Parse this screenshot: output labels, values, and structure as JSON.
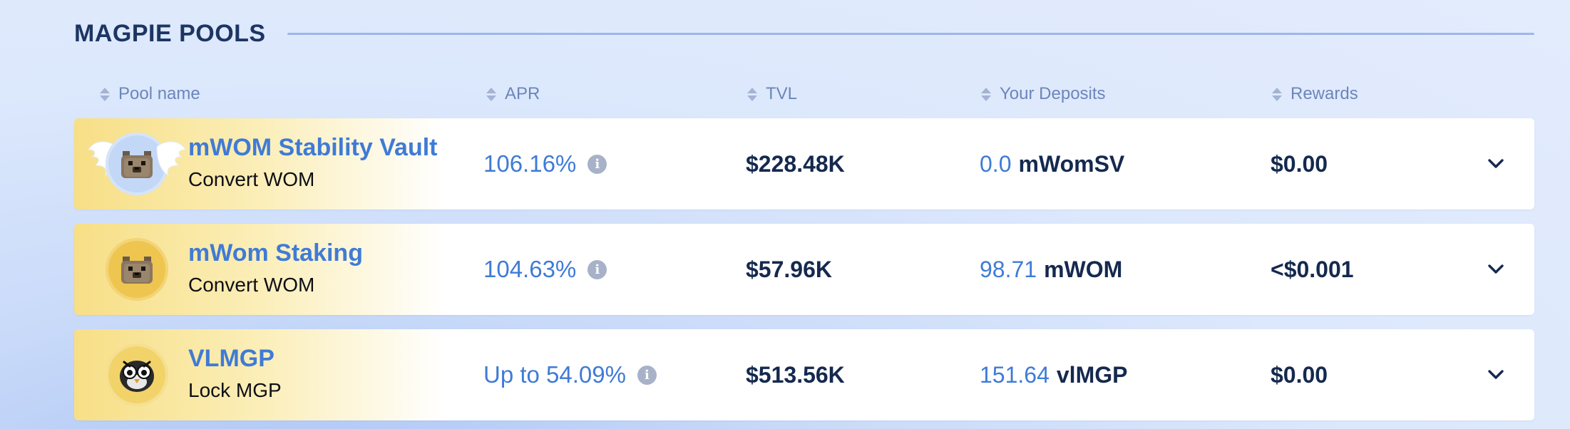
{
  "section": {
    "title": "MAGPIE POOLS"
  },
  "columns": {
    "pool_name": "Pool name",
    "apr": "APR",
    "tvl": "TVL",
    "deposits": "Your Deposits",
    "rewards": "Rewards"
  },
  "pools": [
    {
      "name": "mWOM Stability Vault",
      "subtitle": "Convert WOM",
      "icon": "winged-wombat-icon",
      "apr": "106.16%",
      "tvl": "$228.48K",
      "deposit_amount": "0.0",
      "deposit_token": "mWomSV",
      "rewards": "$0.00"
    },
    {
      "name": "mWom Staking",
      "subtitle": "Convert WOM",
      "icon": "wombat-icon",
      "apr": "104.63%",
      "tvl": "$57.96K",
      "deposit_amount": "98.71",
      "deposit_token": "mWOM",
      "rewards": "<$0.001"
    },
    {
      "name": "VLMGP",
      "subtitle": "Lock MGP",
      "icon": "magpie-icon",
      "apr": "Up to 54.09%",
      "tvl": "$513.56K",
      "deposit_amount": "151.64",
      "deposit_token": "vlMGP",
      "rewards": "$0.00"
    }
  ],
  "colors": {
    "accent_blue": "#3f7bd6",
    "dark_navy": "#15294f",
    "header_muted": "#6c86bb",
    "row_gold": "#f7df86"
  }
}
